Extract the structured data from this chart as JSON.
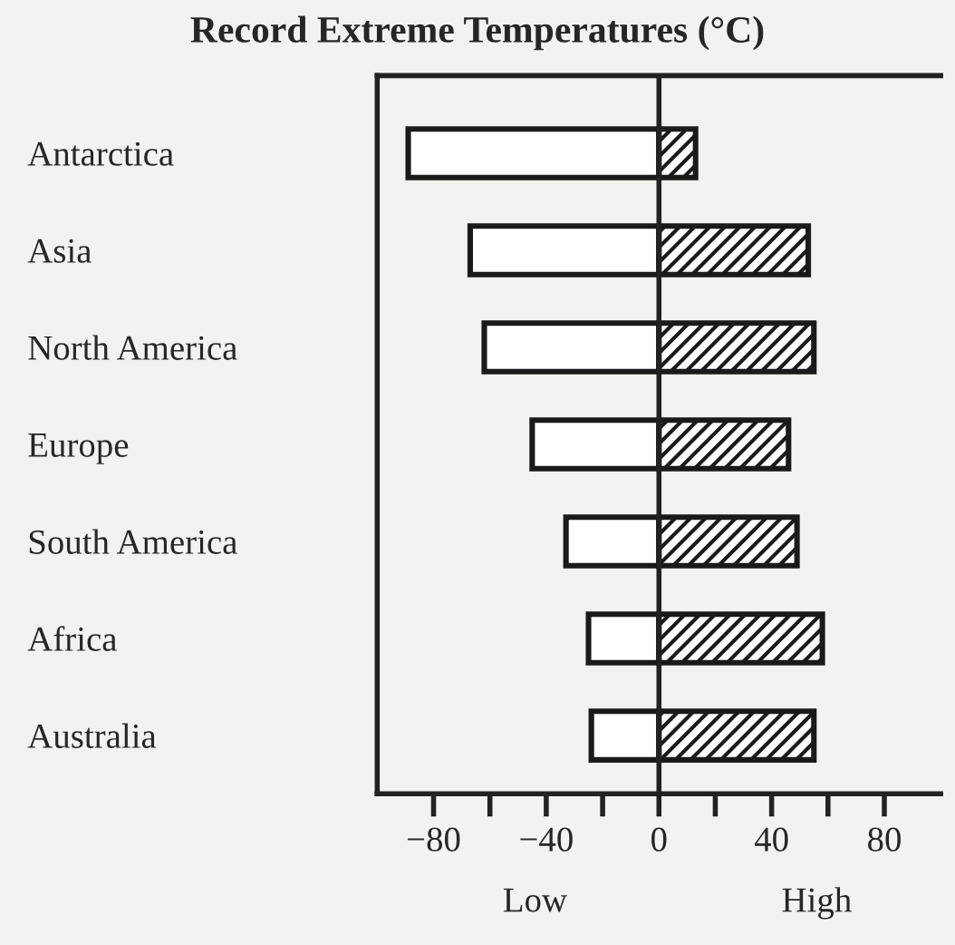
{
  "chart_data": {
    "type": "bar",
    "orientation": "horizontal",
    "title": "Record Extreme Temperatures (°C)",
    "categories": [
      "Antarctica",
      "Asia",
      "North America",
      "Europe",
      "South America",
      "Africa",
      "Australia"
    ],
    "series": [
      {
        "color": "#ffffff",
        "values": [
          -89,
          -67,
          -62,
          -45,
          -33,
          -25,
          -24
        ]
      },
      {
        "color": "#1a1a1a",
        "values": [
          13,
          53,
          55,
          46,
          49,
          58,
          55
        ]
      }
    ],
    "xlim": [
      -100,
      100
    ],
    "xticks": [
      -80,
      {
        "value": -60,
        "label": null
      },
      -40,
      {
        "value": -20,
        "label": null
      },
      0,
      {
        "value": 20,
        "label": null
      },
      40,
      {
        "value": 60,
        "label": null
      },
      80
    ],
    "ref_lines": [
      {
        "axis": "x",
        "value": 0,
        "color": "#222222"
      }
    ],
    "annotations": [
      "Low",
      "High"
    ],
    "grid": false,
    "legend": false,
    "stacked": true
  }
}
